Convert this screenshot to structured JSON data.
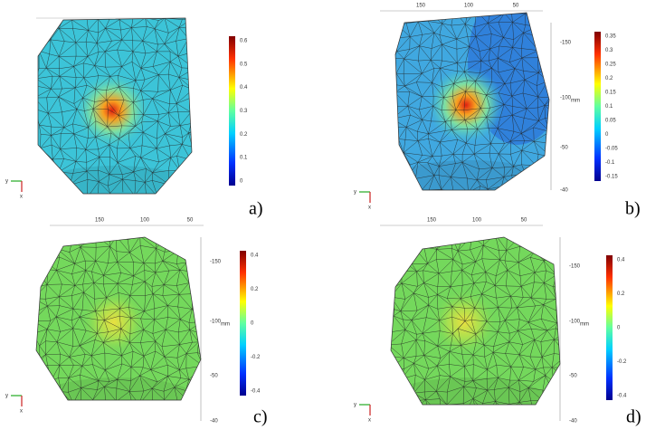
{
  "panels": [
    {
      "label": "a)",
      "colorbar_ticks": [
        "0.6",
        "0.5",
        "0.4",
        "0.3",
        "0.2",
        "0.1",
        "0"
      ]
    },
    {
      "label": "b)",
      "top_ticks": [
        "150",
        "100",
        "50"
      ],
      "right_ticks": [
        "-150",
        "-100",
        "-50",
        "-40"
      ],
      "unit": "mm",
      "colorbar_ticks": [
        "0.35",
        "0.3",
        "0.25",
        "0.2",
        "0.15",
        "0.1",
        "0.05",
        "0",
        "-0.05",
        "-0.1",
        "-0.15"
      ]
    },
    {
      "label": "c)",
      "top_ticks": [
        "150",
        "100",
        "50"
      ],
      "right_ticks": [
        "-150",
        "-100",
        "-50",
        "-40"
      ],
      "unit": "mm",
      "colorbar_ticks": [
        "0.4",
        "0.2",
        "0",
        "-0.2",
        "-0.4"
      ]
    },
    {
      "label": "d)",
      "top_ticks": [
        "150",
        "100",
        "50"
      ],
      "right_ticks": [
        "-150",
        "-100",
        "-50",
        "-40"
      ],
      "unit": "mm",
      "colorbar_ticks": [
        "0.4",
        "0.2",
        "0",
        "-0.2",
        "-0.4"
      ]
    }
  ],
  "axis_labels": {
    "y": "y",
    "x": "x"
  }
}
